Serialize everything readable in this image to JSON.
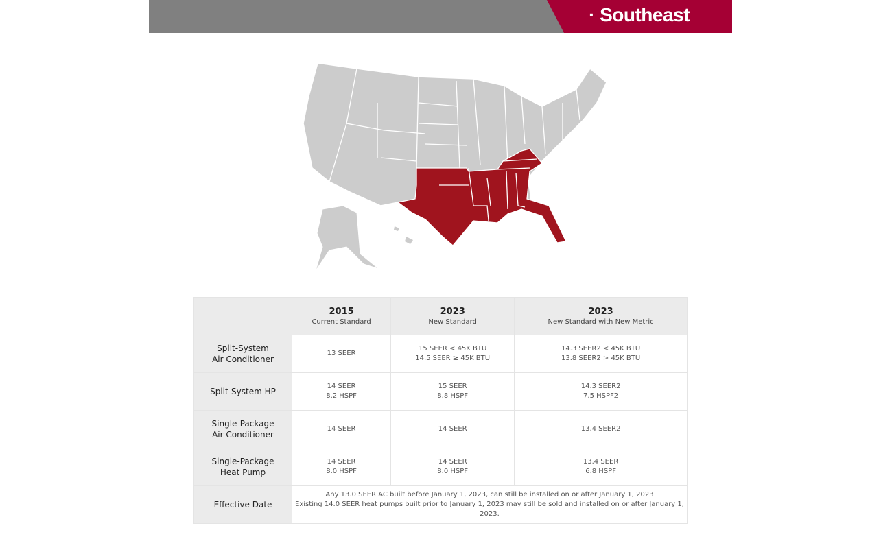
{
  "header": {
    "title": "· Southeast",
    "colors": {
      "bar": "#808080",
      "accent": "#a50034"
    }
  },
  "map": {
    "highlighted_region": "Southeast",
    "highlight_color": "#a0141e",
    "base_color": "#cccccc"
  },
  "table": {
    "columns": [
      {
        "year": "2015",
        "subtitle": "Current Standard"
      },
      {
        "year": "2023",
        "subtitle": "New Standard"
      },
      {
        "year": "2023",
        "subtitle": "New Standard with New Metric"
      }
    ],
    "rows": [
      {
        "label": [
          "Split-System",
          "Air Conditioner"
        ],
        "cells": [
          [
            "13 SEER"
          ],
          [
            "15 SEER < 45K BTU",
            "14.5 SEER ≥ 45K BTU"
          ],
          [
            "14.3 SEER2 < 45K BTU",
            "13.8 SEER2 > 45K BTU"
          ]
        ]
      },
      {
        "label": [
          "Split-System HP"
        ],
        "cells": [
          [
            "14 SEER",
            "8.2 HSPF"
          ],
          [
            "15 SEER",
            "8.8 HSPF"
          ],
          [
            "14.3 SEER2",
            "7.5 HSPF2"
          ]
        ]
      },
      {
        "label": [
          "Single-Package",
          "Air Conditioner"
        ],
        "cells": [
          [
            "14 SEER"
          ],
          [
            "14 SEER"
          ],
          [
            "13.4 SEER2"
          ]
        ]
      },
      {
        "label": [
          "Single-Package",
          "Heat Pump"
        ],
        "cells": [
          [
            "14 SEER",
            "8.0 HSPF"
          ],
          [
            "14 SEER",
            "8.0 HSPF"
          ],
          [
            "13.4 SEER",
            "6.8 HSPF"
          ]
        ]
      }
    ],
    "effective": {
      "label": "Effective Date",
      "lines": [
        "Any 13.0 SEER AC built before January 1, 2023, can still be installed on or after January 1, 2023",
        "Existing 14.0 SEER heat pumps built prior to January 1, 2023 may still be sold and installed on or after January 1, 2023."
      ]
    }
  }
}
